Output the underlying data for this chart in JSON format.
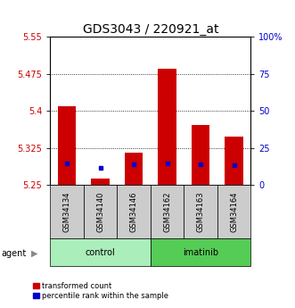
{
  "title": "GDS3043 / 220921_at",
  "samples": [
    "GSM34134",
    "GSM34140",
    "GSM34146",
    "GSM34162",
    "GSM34163",
    "GSM34164"
  ],
  "red_values": [
    5.41,
    5.262,
    5.315,
    5.485,
    5.372,
    5.347
  ],
  "blue_values": [
    5.293,
    5.284,
    5.291,
    5.294,
    5.291,
    5.29
  ],
  "ymin": 5.25,
  "ymax": 5.55,
  "yticks_left": [
    5.25,
    5.325,
    5.4,
    5.475,
    5.55
  ],
  "yticks_right_vals": [
    0,
    25,
    50,
    75,
    100
  ],
  "yticks_right_labels": [
    "0",
    "25",
    "50",
    "75",
    "100%"
  ],
  "gridlines": [
    5.325,
    5.4,
    5.475
  ],
  "bar_width": 0.55,
  "red_color": "#cc0000",
  "blue_color": "#0000cc",
  "control_color": "#aaeebb",
  "imatinib_color": "#55cc55",
  "label_bg_color": "#cccccc",
  "legend_red": "transformed count",
  "legend_blue": "percentile rank within the sample",
  "agent_label": "agent",
  "group_labels": [
    "control",
    "imatinib"
  ],
  "title_fontsize": 10,
  "tick_fontsize": 7,
  "sample_fontsize": 6,
  "group_fontsize": 7,
  "legend_fontsize": 6
}
